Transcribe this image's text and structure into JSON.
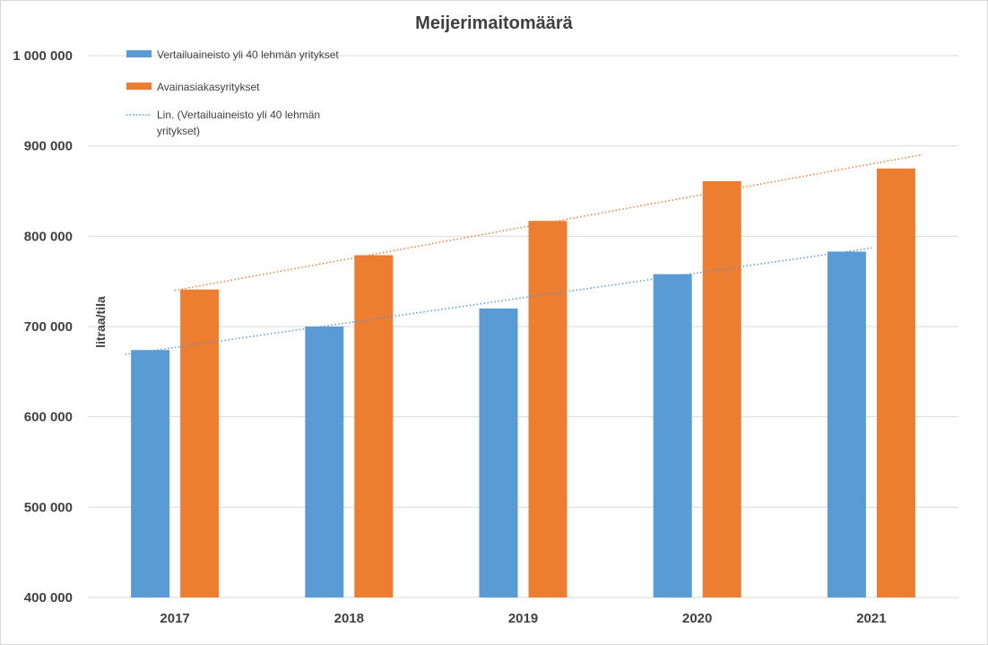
{
  "chart_data": {
    "type": "bar",
    "title": "Meijerimaitomäärä",
    "xlabel": "",
    "ylabel": "litraa/tila",
    "categories": [
      "2017",
      "2018",
      "2019",
      "2020",
      "2021"
    ],
    "series": [
      {
        "name": "Vertailuaineisto yli 40 lehmän yritykset",
        "color": "#5b9bd5",
        "values": [
          674000,
          700000,
          720000,
          758000,
          783000
        ]
      },
      {
        "name": "Avainasiakasyritykset",
        "color": "#ed7d31",
        "values": [
          741000,
          779000,
          817000,
          861000,
          875000
        ]
      }
    ],
    "trendlines": [
      {
        "name": "Lin. (Vertailuaineisto yli 40 lehmän yritykset)",
        "legend_lines": [
          "Lin. (Vertailuaineisto yli 40 lehmän",
          "yritykset)"
        ],
        "series": 0,
        "style": "dotted",
        "color": "#5b9bd5",
        "values": [
          673000,
          700000,
          728000,
          755000,
          783000
        ]
      },
      {
        "name": "",
        "series": 1,
        "style": "dotted",
        "color": "#ed7d31",
        "values": [
          745000,
          780000,
          815000,
          850000,
          885000
        ]
      }
    ],
    "ylim": [
      400000,
      1000000
    ],
    "yticks": [
      400000,
      500000,
      600000,
      700000,
      800000,
      900000,
      1000000
    ],
    "ytick_labels": [
      "400 000",
      "500 000",
      "600 000",
      "700 000",
      "800 000",
      "900 000",
      "1 000 000"
    ],
    "grid": true,
    "legend_position": "top-left"
  }
}
